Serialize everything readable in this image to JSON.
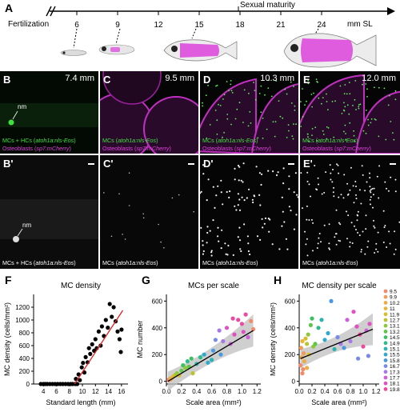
{
  "panels": {
    "A": "A",
    "B": "B",
    "C": "C",
    "D": "D",
    "E": "E",
    "Bp": "B'",
    "Cp": "C'",
    "Dp": "D'",
    "Ep": "E'",
    "F": "F",
    "G": "G",
    "H": "H"
  },
  "timeline": {
    "start_label": "Fertilization",
    "ticks": [
      "6",
      "9",
      "12",
      "15",
      "18",
      "21",
      "24"
    ],
    "unit": "mm SL",
    "milestone": "Sexual maturity"
  },
  "micrographs": {
    "B": {
      "size": "7.4 mm",
      "cap_a": "MCs + HCs (",
      "cap_a_it": "atoh1a:nls-Eos",
      "cap_a_end": ")",
      "cap_b": "Osteoblasts (",
      "cap_b_it": "sp7:mCherry",
      "cap_b_end": ")",
      "nm": "nm"
    },
    "C": {
      "size": "9.5 mm",
      "cap_a": "MCs (",
      "cap_a_it": "atoh1a:nls-Eos",
      "cap_a_end": ")",
      "cap_b": "Osteoblasts (",
      "cap_b_it": "sp7:mCherry",
      "cap_b_end": ")"
    },
    "D": {
      "size": "10.3 mm",
      "cap_a": "MCs (",
      "cap_a_it": "atoh1a:nls-Eos",
      "cap_a_end": ")",
      "cap_b": "Osteoblasts (",
      "cap_b_it": "sp7:mCherry",
      "cap_b_end": ")"
    },
    "E": {
      "size": "12.0 mm",
      "cap_a": "MCs (",
      "cap_a_it": "atoh1a:nls-Eos",
      "cap_a_end": ")",
      "cap_b": "Osteoblasts (",
      "cap_b_it": "sp7:mCherry",
      "cap_b_end": ")"
    },
    "Bp": {
      "cap": "MCs + HCs (",
      "cap_it": "atoh1a:nls-Eos",
      "cap_end": ")",
      "nm": "nm"
    },
    "Cp": {
      "cap": "MCs (",
      "cap_it": "atoh1a:nls-Eos",
      "cap_end": ")"
    },
    "Dp": {
      "cap": "MCs (",
      "cap_it": "atoh1a:nls-Eos",
      "cap_end": ")"
    },
    "Ep": {
      "cap": "MCs (",
      "cap_it": "atoh1a:nls-Eos",
      "cap_end": ")"
    }
  },
  "colors": {
    "green": "#3ee23e",
    "magenta": "#e040e0",
    "fit_red": "#e02020"
  },
  "chart_data": [
    {
      "type": "scatter",
      "title": "MC density",
      "xlabel": "Standard length (mm)",
      "ylabel": "MC density (cells/mm²)",
      "xlim": [
        2.5,
        17
      ],
      "ylim": [
        0,
        1400
      ],
      "xticks": [
        4,
        6,
        8,
        10,
        12,
        14,
        16
      ],
      "yticks": [
        0,
        200,
        400,
        600,
        800,
        1000,
        1200
      ],
      "fit": {
        "x": [
          8.8,
          16.2
        ],
        "y": [
          0,
          1150
        ],
        "color": "#e02020"
      },
      "points": [
        [
          3.6,
          0
        ],
        [
          4.0,
          0
        ],
        [
          4.3,
          0
        ],
        [
          4.6,
          0
        ],
        [
          5.0,
          0
        ],
        [
          5.4,
          0
        ],
        [
          5.8,
          0
        ],
        [
          6.2,
          0
        ],
        [
          6.6,
          0
        ],
        [
          7.0,
          0
        ],
        [
          7.4,
          0
        ],
        [
          7.8,
          0
        ],
        [
          8.2,
          0
        ],
        [
          8.5,
          0
        ],
        [
          8.9,
          0
        ],
        [
          9.2,
          0
        ],
        [
          9.0,
          80
        ],
        [
          9.4,
          150
        ],
        [
          9.6,
          60
        ],
        [
          9.9,
          260
        ],
        [
          10.1,
          330
        ],
        [
          10.3,
          180
        ],
        [
          10.5,
          420
        ],
        [
          10.8,
          340
        ],
        [
          11.0,
          560
        ],
        [
          11.2,
          470
        ],
        [
          11.5,
          620
        ],
        [
          11.8,
          520
        ],
        [
          12.0,
          700
        ],
        [
          12.2,
          560
        ],
        [
          12.5,
          820
        ],
        [
          12.8,
          600
        ],
        [
          13.0,
          900
        ],
        [
          13.3,
          750
        ],
        [
          13.6,
          1000
        ],
        [
          13.9,
          880
        ],
        [
          14.2,
          1250
        ],
        [
          14.5,
          1050
        ],
        [
          14.8,
          1200
        ],
        [
          15.1,
          980
        ],
        [
          15.4,
          820
        ],
        [
          15.7,
          700
        ],
        [
          16.0,
          850
        ],
        [
          15.9,
          500
        ]
      ]
    },
    {
      "type": "scatter",
      "title": "MCs per scale",
      "xlabel": "Scale area (mm²)",
      "ylabel": "MC number",
      "xlim": [
        0,
        1.25
      ],
      "ylim": [
        -20,
        650
      ],
      "xticks": [
        0.0,
        0.2,
        0.4,
        0.6,
        0.8,
        1.0,
        1.2
      ],
      "yticks": [
        0,
        200,
        400,
        600
      ],
      "fit": {
        "x": [
          0.02,
          1.15
        ],
        "y": [
          0,
          380
        ]
      },
      "points": [
        [
          0.03,
          10,
          0
        ],
        [
          0.05,
          20,
          1
        ],
        [
          0.06,
          15,
          2
        ],
        [
          0.08,
          30,
          3
        ],
        [
          0.1,
          40,
          4
        ],
        [
          0.12,
          50,
          5
        ],
        [
          0.14,
          60,
          6
        ],
        [
          0.17,
          45,
          4
        ],
        [
          0.2,
          80,
          7
        ],
        [
          0.22,
          120,
          8
        ],
        [
          0.25,
          100,
          6
        ],
        [
          0.28,
          150,
          9
        ],
        [
          0.3,
          110,
          7
        ],
        [
          0.33,
          170,
          8
        ],
        [
          0.35,
          60,
          5
        ],
        [
          0.4,
          130,
          10
        ],
        [
          0.45,
          180,
          9
        ],
        [
          0.5,
          200,
          11
        ],
        [
          0.55,
          140,
          11
        ],
        [
          0.6,
          160,
          10
        ],
        [
          0.62,
          230,
          12
        ],
        [
          0.65,
          310,
          13
        ],
        [
          0.7,
          380,
          14
        ],
        [
          0.75,
          300,
          14
        ],
        [
          0.8,
          400,
          16
        ],
        [
          0.85,
          280,
          15
        ],
        [
          0.9,
          350,
          16
        ],
        [
          0.95,
          460,
          17
        ],
        [
          1.0,
          430,
          17
        ],
        [
          1.02,
          370,
          16
        ],
        [
          1.05,
          500,
          17
        ],
        [
          1.08,
          330,
          15
        ],
        [
          1.12,
          450,
          18
        ],
        [
          1.15,
          390,
          18
        ],
        [
          0.72,
          200,
          12
        ],
        [
          0.88,
          470,
          17
        ]
      ]
    },
    {
      "type": "scatter",
      "title": "MC density per scale",
      "xlabel": "Scale area (mm²)",
      "ylabel": "MC density (cells/mm²)",
      "xlim": [
        0,
        1.25
      ],
      "ylim": [
        -20,
        650
      ],
      "xticks": [
        0.0,
        0.2,
        0.4,
        0.6,
        0.8,
        1.0,
        1.2
      ],
      "yticks": [
        0,
        200,
        400,
        600
      ],
      "fit": {
        "x": [
          0.02,
          1.15
        ],
        "y": [
          170,
          390
        ]
      },
      "legend": [
        "9.5",
        "9.9",
        "10.2",
        "11",
        "11.9",
        "12.7",
        "13.1",
        "13.2",
        "14.5",
        "14.9",
        "15.1",
        "15.5",
        "15.8",
        "16.7",
        "17.3",
        "17.7",
        "18.1",
        "19.8"
      ],
      "legend_colors": [
        "#f28a6c",
        "#f29a5a",
        "#f0aa48",
        "#e8b43a",
        "#d8be2a",
        "#b8c430",
        "#8cc83a",
        "#5ec44a",
        "#3ac060",
        "#2cbc8c",
        "#2ab4b0",
        "#30a8d0",
        "#4a98e0",
        "#7a88e8",
        "#a878e8",
        "#cc60d8",
        "#e050c0",
        "#ec4aa0"
      ],
      "points": [
        [
          0.02,
          120,
          0
        ],
        [
          0.03,
          250,
          1
        ],
        [
          0.04,
          180,
          2
        ],
        [
          0.05,
          300,
          3
        ],
        [
          0.06,
          90,
          0
        ],
        [
          0.07,
          210,
          1
        ],
        [
          0.08,
          150,
          2
        ],
        [
          0.05,
          60,
          0
        ],
        [
          0.1,
          320,
          4
        ],
        [
          0.12,
          280,
          5
        ],
        [
          0.14,
          350,
          6
        ],
        [
          0.15,
          200,
          4
        ],
        [
          0.18,
          420,
          7
        ],
        [
          0.2,
          470,
          8
        ],
        [
          0.22,
          260,
          6
        ],
        [
          0.3,
          400,
          9
        ],
        [
          0.35,
          460,
          10
        ],
        [
          0.4,
          310,
          11
        ],
        [
          0.45,
          360,
          11
        ],
        [
          0.5,
          600,
          12
        ],
        [
          0.55,
          240,
          10
        ],
        [
          0.6,
          330,
          13
        ],
        [
          0.65,
          280,
          14
        ],
        [
          0.7,
          250,
          12
        ],
        [
          0.75,
          460,
          15
        ],
        [
          0.8,
          300,
          14
        ],
        [
          0.85,
          520,
          16
        ],
        [
          0.9,
          410,
          16
        ],
        [
          0.95,
          350,
          17
        ],
        [
          1.0,
          260,
          17
        ],
        [
          1.05,
          380,
          15
        ],
        [
          1.08,
          190,
          13
        ],
        [
          1.1,
          430,
          16
        ],
        [
          0.12,
          100,
          2
        ],
        [
          0.25,
          280,
          7
        ],
        [
          0.92,
          170,
          13
        ]
      ]
    }
  ]
}
